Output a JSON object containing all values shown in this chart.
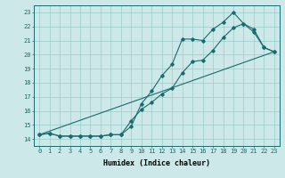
{
  "xlabel": "Humidex (Indice chaleur)",
  "xlim": [
    -0.5,
    23.5
  ],
  "ylim": [
    13.5,
    23.5
  ],
  "yticks": [
    14,
    15,
    16,
    17,
    18,
    19,
    20,
    21,
    22,
    23
  ],
  "xticks": [
    0,
    1,
    2,
    3,
    4,
    5,
    6,
    7,
    8,
    9,
    10,
    11,
    12,
    13,
    14,
    15,
    16,
    17,
    18,
    19,
    20,
    21,
    22,
    23
  ],
  "bg_color": "#cce8e8",
  "line_color": "#1a6b6b",
  "grid_color": "#99cccc",
  "line1_x": [
    0,
    1,
    2,
    3,
    4,
    5,
    6,
    7,
    8,
    9,
    10,
    11,
    12,
    13,
    14,
    15,
    16,
    17,
    18,
    19,
    20,
    21,
    22,
    23
  ],
  "line1_y": [
    14.3,
    14.4,
    14.2,
    14.2,
    14.2,
    14.2,
    14.2,
    14.3,
    14.3,
    14.9,
    16.5,
    17.4,
    18.5,
    19.3,
    21.1,
    21.1,
    21.0,
    21.8,
    22.3,
    23.0,
    22.2,
    21.8,
    20.5,
    20.2
  ],
  "line2_x": [
    0,
    1,
    2,
    3,
    4,
    5,
    6,
    7,
    8,
    9,
    10,
    11,
    12,
    13,
    14,
    15,
    16,
    17,
    18,
    19,
    20,
    21,
    22,
    23
  ],
  "line2_y": [
    14.3,
    14.4,
    14.2,
    14.2,
    14.2,
    14.2,
    14.2,
    14.3,
    14.3,
    15.3,
    16.1,
    16.6,
    17.2,
    17.6,
    18.7,
    19.5,
    19.6,
    20.3,
    21.2,
    21.9,
    22.2,
    21.6,
    20.5,
    20.2
  ],
  "line3_x": [
    0,
    23
  ],
  "line3_y": [
    14.3,
    20.2
  ],
  "tick_fontsize": 5.0,
  "xlabel_fontsize": 6.0
}
